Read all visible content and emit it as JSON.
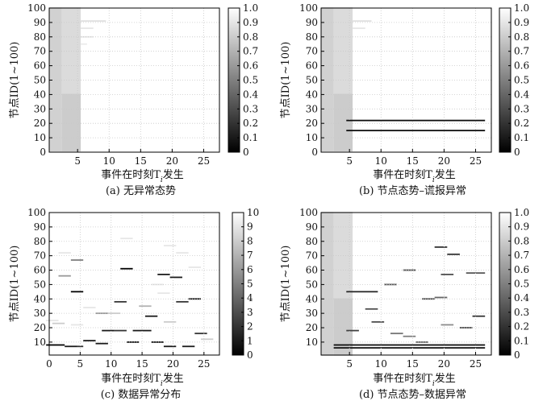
{
  "figure": {
    "panels": [
      {
        "caption": "(a) 无异常态势",
        "xlabel": "事件在时刻T_i发生",
        "ylabel": "节点ID(1~100)"
      },
      {
        "caption": "(b) 节点态势–谎报异常",
        "xlabel": "事件在时刻T_i发生",
        "ylabel": "节点ID(1~100)"
      },
      {
        "caption": "(c) 数据异常分布",
        "xlabel": "事件在时刻T_i发生",
        "ylabel": "节点ID(1~100)"
      },
      {
        "caption": "(d) 节点态势–数据异常",
        "xlabel": "事件在时刻T_i发生",
        "ylabel": "节点ID(1~100)"
      }
    ]
  },
  "chart_data": [
    {
      "type": "heatmap",
      "caption": "(a) 无异常态势",
      "xlabel": "事件在时刻T_i发生",
      "ylabel": "节点ID(1~100)",
      "xlim": [
        0.5,
        27.5
      ],
      "ylim": [
        0,
        100
      ],
      "xticks": [
        5,
        10,
        15,
        20,
        25
      ],
      "yticks": [
        0,
        10,
        20,
        30,
        40,
        50,
        60,
        70,
        80,
        90,
        100
      ],
      "colorbar": {
        "range": [
          0,
          1
        ],
        "ticks": [
          "0",
          "0.1",
          "0.2",
          "0.3",
          "0.4",
          "0.5",
          "0.6",
          "0.7",
          "0.8",
          "0.9",
          "1.0"
        ]
      },
      "grid": true,
      "colormap": "gray",
      "cells": [
        {
          "node": [
            1,
            100
          ],
          "t": [
            1,
            2
          ],
          "v": 0.82
        },
        {
          "node": [
            41,
            100
          ],
          "t": [
            3,
            5
          ],
          "v": 0.86
        },
        {
          "node": [
            1,
            40
          ],
          "t": [
            3,
            5
          ],
          "v": 0.8
        },
        {
          "node": [
            91,
            91
          ],
          "t": [
            6,
            9
          ],
          "v": 0.88
        },
        {
          "node": [
            86,
            86
          ],
          "t": [
            6,
            7
          ],
          "v": 0.9
        },
        {
          "node": [
            80,
            80
          ],
          "t": [
            6,
            7
          ],
          "v": 0.9
        },
        {
          "node": [
            75,
            75
          ],
          "t": [
            6,
            6
          ],
          "v": 0.92
        }
      ]
    },
    {
      "type": "heatmap",
      "caption": "(b) 节点态势–谎报异常",
      "xlabel": "事件在时刻T_i发生",
      "ylabel": "节点ID(1~100)",
      "xlim": [
        0.5,
        27.5
      ],
      "ylim": [
        0,
        100
      ],
      "xticks": [
        5,
        10,
        15,
        20,
        25
      ],
      "yticks": [
        0,
        10,
        20,
        30,
        40,
        50,
        60,
        70,
        80,
        90,
        100
      ],
      "colorbar": {
        "range": [
          0,
          1
        ],
        "ticks": [
          "0",
          "0.1",
          "0.2",
          "0.3",
          "0.4",
          "0.5",
          "0.6",
          "0.7",
          "0.8",
          "0.9",
          "1.0"
        ]
      },
      "grid": true,
      "colormap": "gray",
      "cells": [
        {
          "node": [
            1,
            100
          ],
          "t": [
            1,
            2
          ],
          "v": 0.82
        },
        {
          "node": [
            41,
            100
          ],
          "t": [
            3,
            5
          ],
          "v": 0.86
        },
        {
          "node": [
            1,
            40
          ],
          "t": [
            3,
            5
          ],
          "v": 0.8
        },
        {
          "node": [
            91,
            91
          ],
          "t": [
            6,
            8
          ],
          "v": 0.88
        },
        {
          "node": [
            86,
            86
          ],
          "t": [
            6,
            7
          ],
          "v": 0.9
        },
        {
          "node": [
            22,
            22
          ],
          "t": [
            5,
            26
          ],
          "v": 0.05
        },
        {
          "node": [
            15,
            15
          ],
          "t": [
            5,
            26
          ],
          "v": 0.05
        }
      ]
    },
    {
      "type": "heatmap",
      "caption": "(c) 数据异常分布",
      "xlabel": "事件在时刻T_i发生",
      "ylabel": "节点ID(1~100)",
      "xlim": [
        0,
        27.5
      ],
      "ylim": [
        1,
        100
      ],
      "xticks": [
        0,
        5,
        10,
        15,
        20,
        25
      ],
      "yticks": [
        10,
        20,
        30,
        40,
        50,
        60,
        70,
        80,
        90,
        100
      ],
      "colorbar": {
        "range": [
          0,
          10
        ],
        "ticks": [
          "0",
          "1",
          "2",
          "3",
          "4",
          "5",
          "6",
          "7",
          "8",
          "9",
          "10"
        ]
      },
      "grid": true,
      "colormap": "gray",
      "cells": [
        {
          "node": [
            8,
            8
          ],
          "t": [
            0,
            2
          ],
          "v": 0
        },
        {
          "node": [
            7,
            7
          ],
          "t": [
            3,
            4
          ],
          "v": 1
        },
        {
          "node": [
            7,
            7
          ],
          "t": [
            5,
            5
          ],
          "v": 2
        },
        {
          "node": [
            11,
            11
          ],
          "t": [
            6,
            7
          ],
          "v": 1
        },
        {
          "node": [
            9,
            9
          ],
          "t": [
            8,
            9
          ],
          "v": 1
        },
        {
          "node": [
            18,
            18
          ],
          "t": [
            9,
            10
          ],
          "v": 1
        },
        {
          "node": [
            18,
            18
          ],
          "t": [
            11,
            12
          ],
          "v": 2
        },
        {
          "node": [
            10,
            10
          ],
          "t": [
            13,
            14
          ],
          "v": 1
        },
        {
          "node": [
            18,
            18
          ],
          "t": [
            14,
            16
          ],
          "v": 1
        },
        {
          "node": [
            10,
            10
          ],
          "t": [
            17,
            18
          ],
          "v": 1
        },
        {
          "node": [
            7,
            7
          ],
          "t": [
            19,
            20
          ],
          "v": 1
        },
        {
          "node": [
            7,
            7
          ],
          "t": [
            22,
            23
          ],
          "v": 1
        },
        {
          "node": [
            16,
            16
          ],
          "t": [
            24,
            25
          ],
          "v": 2
        },
        {
          "node": [
            45,
            45
          ],
          "t": [
            4,
            5
          ],
          "v": 0
        },
        {
          "node": [
            61,
            61
          ],
          "t": [
            12,
            13
          ],
          "v": 0
        },
        {
          "node": [
            57,
            57
          ],
          "t": [
            18,
            19
          ],
          "v": 1
        },
        {
          "node": [
            55,
            55
          ],
          "t": [
            20,
            21
          ],
          "v": 1
        },
        {
          "node": [
            38,
            38
          ],
          "t": [
            11,
            12
          ],
          "v": 2
        },
        {
          "node": [
            28,
            28
          ],
          "t": [
            16,
            17
          ],
          "v": 1
        },
        {
          "node": [
            38,
            38
          ],
          "t": [
            21,
            22
          ],
          "v": 2
        },
        {
          "node": [
            40,
            40
          ],
          "t": [
            23,
            24
          ],
          "v": 1
        },
        {
          "node": [
            67,
            67
          ],
          "t": [
            4,
            5
          ],
          "v": 5
        },
        {
          "node": [
            56,
            56
          ],
          "t": [
            2,
            3
          ],
          "v": 6
        },
        {
          "node": [
            30,
            30
          ],
          "t": [
            8,
            9
          ],
          "v": 6
        },
        {
          "node": [
            23,
            23
          ],
          "t": [
            1,
            2
          ],
          "v": 8
        },
        {
          "node": [
            25,
            25
          ],
          "t": [
            0,
            1
          ],
          "v": 9
        },
        {
          "node": [
            30,
            30
          ],
          "t": [
            10,
            11
          ],
          "v": 8
        },
        {
          "node": [
            35,
            35
          ],
          "t": [
            15,
            16
          ],
          "v": 7
        },
        {
          "node": [
            24,
            24
          ],
          "t": [
            19,
            20
          ],
          "v": 8
        },
        {
          "node": [
            82,
            82
          ],
          "t": [
            12,
            13
          ],
          "v": 9
        },
        {
          "node": [
            77,
            77
          ],
          "t": [
            19,
            20
          ],
          "v": 9
        },
        {
          "node": [
            72,
            72
          ],
          "t": [
            21,
            22
          ],
          "v": 9
        },
        {
          "node": [
            62,
            62
          ],
          "t": [
            23,
            24
          ],
          "v": 9
        },
        {
          "node": [
            50,
            50
          ],
          "t": [
            17,
            18
          ],
          "v": 9
        },
        {
          "node": [
            44,
            44
          ],
          "t": [
            18,
            19
          ],
          "v": 9
        },
        {
          "node": [
            34,
            34
          ],
          "t": [
            6,
            7
          ],
          "v": 9
        },
        {
          "node": [
            22,
            22
          ],
          "t": [
            4,
            5
          ],
          "v": 9
        },
        {
          "node": [
            72,
            72
          ],
          "t": [
            2,
            3
          ],
          "v": 9
        },
        {
          "node": [
            12,
            12
          ],
          "t": [
            25,
            26
          ],
          "v": 8
        }
      ]
    },
    {
      "type": "heatmap",
      "caption": "(d) 节点态势–数据异常",
      "xlabel": "事件在时刻T_i发生",
      "ylabel": "节点ID(1~100)",
      "xlim": [
        0.5,
        27.5
      ],
      "ylim": [
        1,
        100
      ],
      "xticks": [
        5,
        10,
        15,
        20,
        25
      ],
      "yticks": [
        10,
        20,
        30,
        40,
        50,
        60,
        70,
        80,
        90,
        100
      ],
      "colorbar": {
        "range": [
          0,
          1
        ],
        "ticks": [
          "0",
          "0.1",
          "0.2",
          "0.3",
          "0.4",
          "0.5",
          "0.6",
          "0.7",
          "0.8",
          "0.9",
          "1.0"
        ]
      },
      "grid": true,
      "colormap": "gray",
      "cells": [
        {
          "node": [
            1,
            100
          ],
          "t": [
            1,
            2
          ],
          "v": 0.82
        },
        {
          "node": [
            41,
            100
          ],
          "t": [
            3,
            5
          ],
          "v": 0.86
        },
        {
          "node": [
            1,
            40
          ],
          "t": [
            3,
            5
          ],
          "v": 0.8
        },
        {
          "node": [
            8,
            8
          ],
          "t": [
            3,
            26
          ],
          "v": 0.05
        },
        {
          "node": [
            6,
            6
          ],
          "t": [
            3,
            26
          ],
          "v": 0.08
        },
        {
          "node": [
            45,
            45
          ],
          "t": [
            5,
            9
          ],
          "v": 0.15
        },
        {
          "node": [
            18,
            18
          ],
          "t": [
            5,
            6
          ],
          "v": 0.25
        },
        {
          "node": [
            76,
            76
          ],
          "t": [
            19,
            20
          ],
          "v": 0.2
        },
        {
          "node": [
            71,
            71
          ],
          "t": [
            21,
            22
          ],
          "v": 0.2
        },
        {
          "node": [
            60,
            60
          ],
          "t": [
            14,
            15
          ],
          "v": 0.3
        },
        {
          "node": [
            57,
            57
          ],
          "t": [
            20,
            21
          ],
          "v": 0.3
        },
        {
          "node": [
            58,
            58
          ],
          "t": [
            24,
            26
          ],
          "v": 0.35
        },
        {
          "node": [
            50,
            50
          ],
          "t": [
            11,
            12
          ],
          "v": 0.35
        },
        {
          "node": [
            40,
            40
          ],
          "t": [
            17,
            18
          ],
          "v": 0.3
        },
        {
          "node": [
            41,
            41
          ],
          "t": [
            19,
            20
          ],
          "v": 0.4
        },
        {
          "node": [
            33,
            33
          ],
          "t": [
            8,
            9
          ],
          "v": 0.3
        },
        {
          "node": [
            28,
            28
          ],
          "t": [
            25,
            26
          ],
          "v": 0.2
        },
        {
          "node": [
            24,
            24
          ],
          "t": [
            9,
            10
          ],
          "v": 0.3
        },
        {
          "node": [
            20,
            20
          ],
          "t": [
            23,
            24
          ],
          "v": 0.3
        },
        {
          "node": [
            16,
            16
          ],
          "t": [
            12,
            13
          ],
          "v": 0.45
        },
        {
          "node": [
            14,
            14
          ],
          "t": [
            14,
            15
          ],
          "v": 0.5
        },
        {
          "node": [
            10,
            10
          ],
          "t": [
            16,
            17
          ],
          "v": 0.4
        },
        {
          "node": [
            22,
            22
          ],
          "t": [
            20,
            21
          ],
          "v": 0.55
        }
      ]
    }
  ]
}
